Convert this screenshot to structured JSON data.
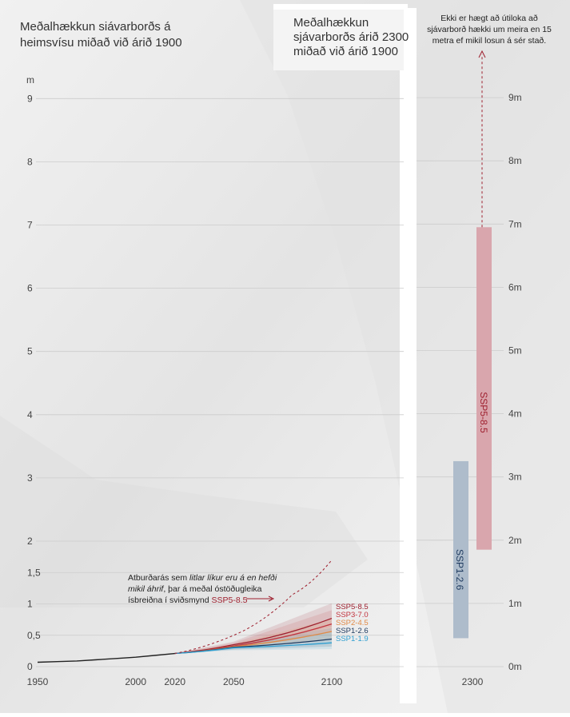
{
  "left_panel": {
    "title_lines": [
      "Meðalhækkun siávarborðs á",
      "heimsvísu miðað við árið 1900"
    ],
    "y_unit": "m",
    "y_ticks": [
      "0",
      "0,5",
      "1",
      "1,5",
      "2",
      "3",
      "4",
      "5",
      "6",
      "7",
      "8",
      "9"
    ],
    "x_ticks": [
      "1950",
      "2000",
      "2020",
      "2050",
      "2100"
    ],
    "annotation": {
      "line1": "Atburðarás sem ",
      "line1_italic": "litlar líkur eru á en hefði",
      "line2_italic": "mikil áhrif",
      "line2": ", þar á meðal óstöðugleika",
      "line3": "ísbreiðna í sviðsmynd ",
      "line3_highlight": "SSP5-8.5"
    },
    "legend": [
      "SSP5-8.5",
      "SSP3-7.0",
      "SSP2-4.5",
      "SSP1-2.6",
      "SSP1-1.9"
    ]
  },
  "right_panel": {
    "title_lines": [
      "Meðalhækkun",
      "sjávarborðs árið 2300",
      "miðað við árið 1900"
    ],
    "note_lines": [
      "Ekki er hægt að útiloka að",
      "sjávarborð hækki um meira en 15",
      "metra ef mikil losun á sér stað."
    ],
    "y_ticks": [
      "0m",
      "1m",
      "2m",
      "3m",
      "4m",
      "5m",
      "6m",
      "7m",
      "8m",
      "9m"
    ],
    "x_ticks": [
      "2300"
    ]
  },
  "colors": {
    "ssp585": "#9e1f2e",
    "ssp370": "#c2343f",
    "ssp245": "#e08a47",
    "ssp126": "#1e3a5f",
    "ssp119": "#2f9fd0",
    "bar_ssp585": "#d9a6ad",
    "bar_ssp126": "#aebccb"
  },
  "chart_data": [
    {
      "type": "line",
      "xlabel": "",
      "ylabel": "m",
      "xlim": [
        1950,
        2100
      ],
      "ylim": [
        0,
        9
      ],
      "historical": {
        "x": [
          1950,
          1960,
          1970,
          1980,
          1990,
          2000,
          2010,
          2020
        ],
        "values": [
          0.07,
          0.08,
          0.09,
          0.11,
          0.13,
          0.15,
          0.18,
          0.21
        ]
      },
      "series": [
        {
          "name": "SSP5-8.5",
          "x": [
            2020,
            2050,
            2100
          ],
          "values": [
            0.21,
            0.35,
            0.77
          ],
          "range_low": [
            0.21,
            0.3,
            0.63
          ],
          "range_high": [
            0.21,
            0.4,
            1.01
          ]
        },
        {
          "name": "SSP3-7.0",
          "x": [
            2020,
            2050,
            2100
          ],
          "values": [
            0.21,
            0.33,
            0.68
          ],
          "range_low": [
            0.21,
            0.29,
            0.55
          ],
          "range_high": [
            0.21,
            0.38,
            0.9
          ]
        },
        {
          "name": "SSP2-4.5",
          "x": [
            2020,
            2050,
            2100
          ],
          "values": [
            0.21,
            0.32,
            0.56
          ],
          "range_low": [
            0.21,
            0.28,
            0.44
          ],
          "range_high": [
            0.21,
            0.36,
            0.76
          ]
        },
        {
          "name": "SSP1-2.6",
          "x": [
            2020,
            2050,
            2100
          ],
          "values": [
            0.21,
            0.31,
            0.44
          ],
          "range_low": [
            0.21,
            0.27,
            0.32
          ],
          "range_high": [
            0.21,
            0.35,
            0.62
          ]
        },
        {
          "name": "SSP1-1.9",
          "x": [
            2020,
            2050,
            2100
          ],
          "values": [
            0.21,
            0.3,
            0.38
          ],
          "range_low": [
            0.21,
            0.26,
            0.28
          ],
          "range_high": [
            0.21,
            0.34,
            0.55
          ]
        }
      ],
      "low_likelihood_ssp585": {
        "x": [
          2020,
          2050,
          2080,
          2100
        ],
        "values": [
          0.21,
          0.5,
          1.15,
          1.7
        ]
      }
    },
    {
      "type": "bar",
      "categories": [
        "2300"
      ],
      "ylabel": "m",
      "ylim": [
        0,
        9
      ],
      "series": [
        {
          "name": "SSP1-2.6",
          "low": 0.45,
          "high": 3.25
        },
        {
          "name": "SSP5-8.5",
          "low": 1.85,
          "high": 6.95,
          "arrow_to": 15
        }
      ]
    }
  ]
}
